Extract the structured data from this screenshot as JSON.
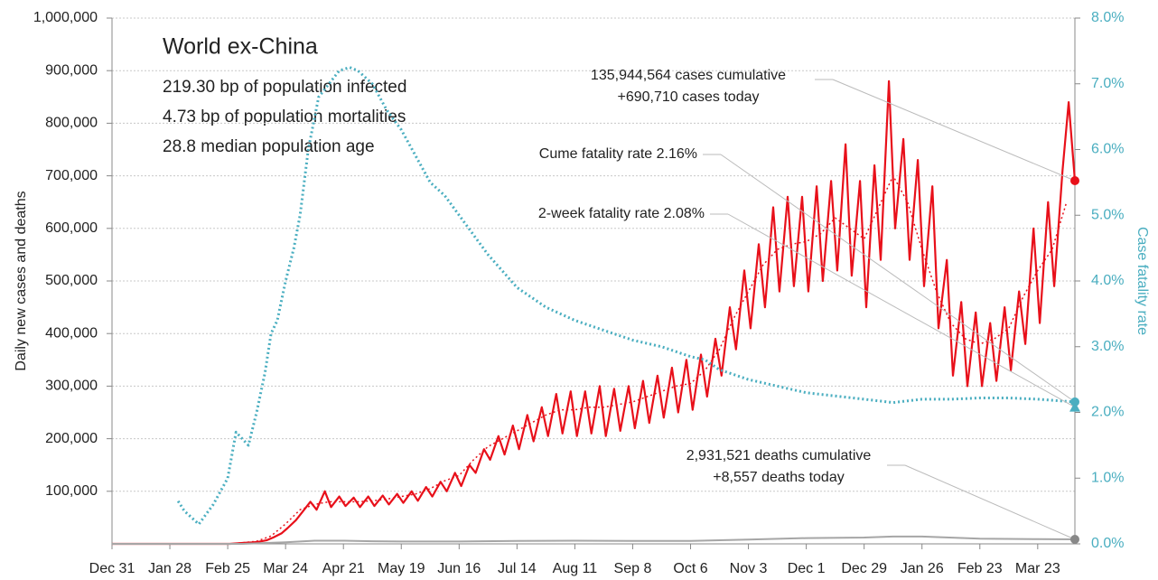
{
  "chart_data": {
    "type": "line",
    "info": {
      "title": "World ex-China",
      "lines": [
        "219.30 bp of population infected",
        "4.73 bp of population mortalities",
        "28.8 median population age"
      ]
    },
    "ylabel": "Daily new cases and deaths",
    "y2label": "Case fatality rate",
    "xlim": [
      0,
      466
    ],
    "xticks": [
      {
        "value": 0,
        "label": "Dec 31"
      },
      {
        "value": 28,
        "label": "Jan 28"
      },
      {
        "value": 56,
        "label": "Feb 25"
      },
      {
        "value": 84,
        "label": "Mar 24"
      },
      {
        "value": 112,
        "label": "Apr 21"
      },
      {
        "value": 140,
        "label": "May 19"
      },
      {
        "value": 168,
        "label": "Jun 16"
      },
      {
        "value": 196,
        "label": "Jul 14"
      },
      {
        "value": 224,
        "label": "Aug 11"
      },
      {
        "value": 252,
        "label": "Sep 8"
      },
      {
        "value": 280,
        "label": "Oct 6"
      },
      {
        "value": 308,
        "label": "Nov 3"
      },
      {
        "value": 336,
        "label": "Dec 1"
      },
      {
        "value": 364,
        "label": "Dec 29"
      },
      {
        "value": 392,
        "label": "Jan 26"
      },
      {
        "value": 420,
        "label": "Feb 23"
      },
      {
        "value": 448,
        "label": "Mar 23"
      }
    ],
    "ylim": [
      0,
      1000000
    ],
    "yticks": [
      {
        "value": 100000,
        "label": "100,000"
      },
      {
        "value": 200000,
        "label": "200,000"
      },
      {
        "value": 300000,
        "label": "300,000"
      },
      {
        "value": 400000,
        "label": "400,000"
      },
      {
        "value": 500000,
        "label": "500,000"
      },
      {
        "value": 600000,
        "label": "600,000"
      },
      {
        "value": 700000,
        "label": "700,000"
      },
      {
        "value": 800000,
        "label": "800,000"
      },
      {
        "value": 900000,
        "label": "900,000"
      },
      {
        "value": 1000000,
        "label": "1,000,000"
      }
    ],
    "y2lim": [
      0,
      8
    ],
    "y2ticks": [
      {
        "value": 0,
        "label": "0.0%"
      },
      {
        "value": 1,
        "label": "1.0%"
      },
      {
        "value": 2,
        "label": "2.0%"
      },
      {
        "value": 3,
        "label": "3.0%"
      },
      {
        "value": 4,
        "label": "4.0%"
      },
      {
        "value": 5,
        "label": "5.0%"
      },
      {
        "value": 6,
        "label": "6.0%"
      },
      {
        "value": 7,
        "label": "7.0%"
      },
      {
        "value": 8,
        "label": "8.0%"
      }
    ],
    "grid": true,
    "series": [
      {
        "color": "#e8101a",
        "dash": false,
        "width": 2.2,
        "x": [
          0,
          57,
          61,
          64,
          68,
          71,
          75,
          78,
          82,
          85,
          89,
          92,
          96,
          99,
          103,
          106,
          110,
          113,
          117,
          120,
          124,
          127,
          131,
          134,
          138,
          141,
          145,
          148,
          152,
          155,
          159,
          162,
          166,
          169,
          173,
          176,
          180,
          183,
          187,
          190,
          194,
          197,
          201,
          204,
          208,
          211,
          215,
          218,
          222,
          225,
          229,
          232,
          236,
          239,
          243,
          246,
          250,
          253,
          257,
          260,
          264,
          267,
          271,
          274,
          278,
          281,
          285,
          288,
          292,
          295,
          299,
          302,
          306,
          309,
          313,
          316,
          320,
          323,
          327,
          330,
          334,
          337,
          341,
          344,
          348,
          351,
          355,
          358,
          362,
          365,
          369,
          372,
          376,
          379,
          383,
          386,
          390,
          393,
          397,
          400,
          404,
          407,
          411,
          414,
          418,
          421,
          425,
          428,
          432,
          435,
          439,
          442,
          446,
          449,
          453,
          456,
          460,
          463,
          466
        ],
        "values": [
          0,
          0,
          1000,
          2000,
          3000,
          4000,
          7000,
          12000,
          20000,
          30000,
          45000,
          60000,
          80000,
          65000,
          100000,
          70000,
          90000,
          72000,
          88000,
          70000,
          90000,
          72000,
          92000,
          75000,
          95000,
          78000,
          100000,
          82000,
          108000,
          90000,
          118000,
          100000,
          135000,
          110000,
          150000,
          135000,
          180000,
          160000,
          205000,
          170000,
          225000,
          180000,
          245000,
          195000,
          260000,
          205000,
          285000,
          210000,
          290000,
          205000,
          290000,
          210000,
          300000,
          205000,
          295000,
          215000,
          300000,
          220000,
          310000,
          230000,
          320000,
          240000,
          335000,
          250000,
          350000,
          255000,
          360000,
          280000,
          390000,
          320000,
          450000,
          370000,
          520000,
          410000,
          570000,
          450000,
          640000,
          480000,
          660000,
          490000,
          660000,
          480000,
          680000,
          500000,
          690000,
          520000,
          760000,
          510000,
          690000,
          450000,
          720000,
          540000,
          880000,
          600000,
          770000,
          540000,
          730000,
          490000,
          680000,
          410000,
          540000,
          320000,
          460000,
          300000,
          440000,
          300000,
          420000,
          310000,
          450000,
          330000,
          480000,
          380000,
          600000,
          420000,
          650000,
          490000,
          710000,
          840000,
          690710
        ]
      },
      {
        "color": "#e8101a",
        "dash": true,
        "width": 1.5,
        "x": [
          0,
          7,
          14,
          21,
          28,
          35,
          42,
          49,
          56,
          63,
          70,
          77,
          84,
          91,
          98,
          105,
          112,
          119,
          126,
          133,
          140,
          147,
          154,
          161,
          168,
          175,
          182,
          189,
          196,
          203,
          210,
          217,
          224,
          231,
          238,
          245,
          252,
          259,
          266,
          273,
          280,
          287,
          294,
          301,
          308,
          315,
          322,
          329,
          336,
          343,
          350,
          357,
          364,
          371,
          378,
          385,
          392,
          399,
          406,
          413,
          420,
          427,
          434,
          441,
          448,
          455,
          462
        ],
        "values": [
          0,
          0,
          0,
          0,
          0,
          0,
          0,
          0,
          0,
          2000,
          5000,
          15000,
          38000,
          65000,
          75000,
          80000,
          80000,
          80000,
          82000,
          85000,
          90000,
          95000,
          105000,
          120000,
          130000,
          160000,
          185000,
          200000,
          215000,
          230000,
          245000,
          255000,
          255000,
          260000,
          260000,
          265000,
          270000,
          280000,
          290000,
          300000,
          305000,
          330000,
          370000,
          430000,
          480000,
          530000,
          560000,
          570000,
          575000,
          590000,
          620000,
          600000,
          580000,
          640000,
          700000,
          650000,
          560000,
          480000,
          420000,
          390000,
          380000,
          390000,
          410000,
          470000,
          520000,
          560000,
          650000
        ]
      },
      {
        "color": "#a6a6a6",
        "dash": false,
        "width": 2,
        "x": [
          0,
          63,
          70,
          84,
          98,
          112,
          126,
          140,
          168,
          196,
          224,
          252,
          280,
          308,
          336,
          364,
          378,
          392,
          420,
          448,
          466
        ],
        "values": [
          0,
          0,
          1000,
          3000,
          6000,
          6000,
          5000,
          4500,
          4500,
          5500,
          6000,
          5500,
          5500,
          8000,
          11000,
          12000,
          14000,
          14000,
          10000,
          9000,
          8557
        ]
      },
      {
        "color": "#4aaec0",
        "dash": true,
        "width": 3,
        "axis": "y2",
        "x": [
          32,
          35,
          42,
          49,
          56,
          60,
          63,
          66,
          70,
          74,
          77,
          80,
          84,
          88,
          91,
          95,
          100,
          105,
          110,
          115,
          119,
          126,
          133,
          140,
          147,
          154,
          161,
          168,
          182,
          196,
          210,
          224,
          238,
          252,
          266,
          280,
          287,
          294,
          308,
          322,
          336,
          350,
          364,
          378,
          392,
          406,
          420,
          434,
          448,
          466
        ],
        "values": [
          0.65,
          0.5,
          0.3,
          0.6,
          1.0,
          1.7,
          1.6,
          1.5,
          2.0,
          2.6,
          3.2,
          3.4,
          4.0,
          4.5,
          5.0,
          6.0,
          6.8,
          7.0,
          7.2,
          7.25,
          7.2,
          7.0,
          6.6,
          6.3,
          5.9,
          5.5,
          5.3,
          5.0,
          4.4,
          3.9,
          3.6,
          3.4,
          3.25,
          3.1,
          3.0,
          2.85,
          2.8,
          2.65,
          2.5,
          2.4,
          2.3,
          2.25,
          2.2,
          2.15,
          2.2,
          2.2,
          2.22,
          2.22,
          2.2,
          2.16
        ]
      }
    ],
    "annotations": [
      {
        "text": [
          "135,944,564 cases cumulative",
          "+690,710 cases today"
        ],
        "value": 690710,
        "marker": "circle",
        "color": "#e8101a"
      },
      {
        "text": [
          "Cume fatality rate 2.16%"
        ],
        "value": 2.16,
        "axis": "y2",
        "marker": "circle",
        "color": "#4aaec0"
      },
      {
        "text": [
          "2-week fatality rate 2.08%"
        ],
        "value": 2.08,
        "axis": "y2",
        "marker": "triangle",
        "color": "#4aaec0"
      },
      {
        "text": [
          "2,931,521 deaths cumulative",
          "+8,557 deaths today"
        ],
        "value": 8557,
        "marker": "circle",
        "color": "#888888"
      }
    ]
  }
}
